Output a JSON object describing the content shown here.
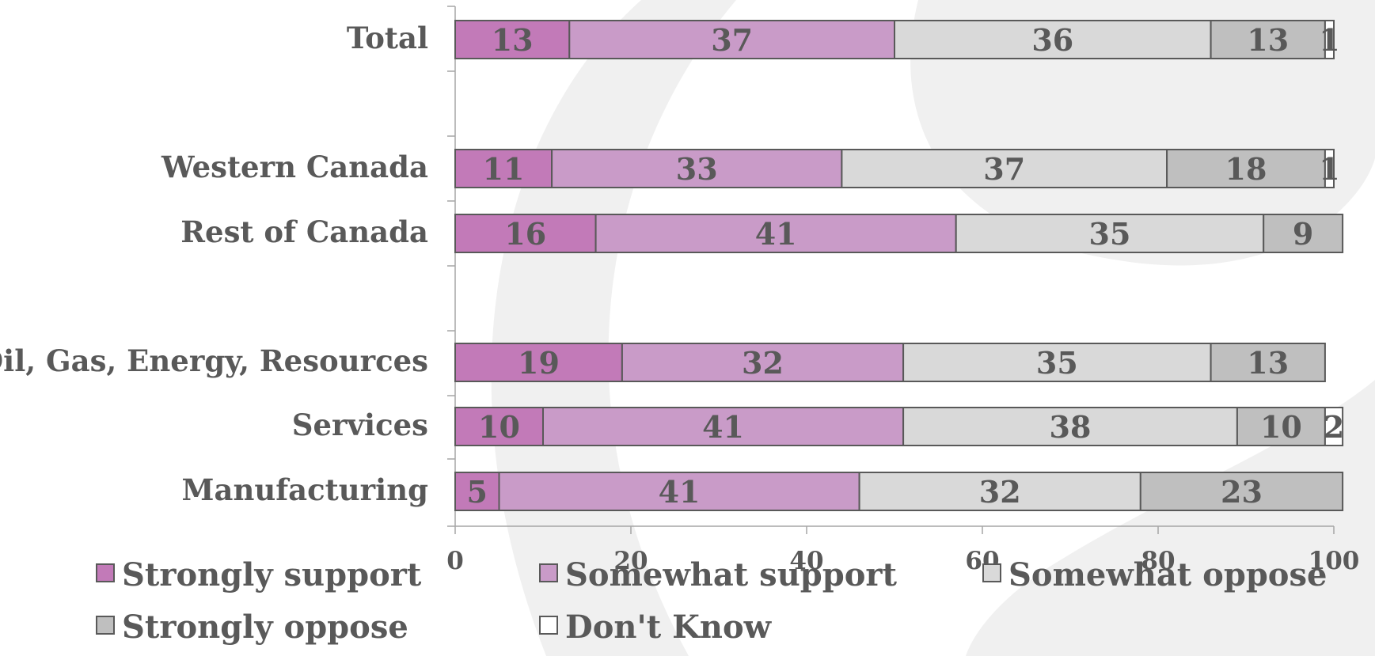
{
  "chart_data": {
    "type": "bar",
    "orientation": "horizontal",
    "stacked": true,
    "title": "",
    "xlabel": "",
    "ylabel": "",
    "xlim": [
      0,
      100
    ],
    "xticks": [
      0,
      20,
      40,
      60,
      80,
      100
    ],
    "grid": false,
    "legend_position": "bottom",
    "categories": [
      "Total",
      "Western Canada",
      "Rest of Canada",
      "Oil, Gas, Energy, Resources",
      "Services",
      "Manufacturing"
    ],
    "category_groups": [
      [
        0
      ],
      [
        1,
        2
      ],
      [
        3,
        4,
        5
      ]
    ],
    "series": [
      {
        "name": "Strongly support",
        "color": "#c27ab8",
        "values": [
          13,
          11,
          16,
          19,
          10,
          5
        ]
      },
      {
        "name": "Somewhat support",
        "color": "#c99bc8",
        "values": [
          37,
          33,
          41,
          32,
          41,
          41
        ]
      },
      {
        "name": "Somewhat oppose",
        "color": "#d9d9d9",
        "values": [
          36,
          37,
          35,
          35,
          38,
          32
        ]
      },
      {
        "name": "Strongly oppose",
        "color": "#bfbfbf",
        "values": [
          13,
          18,
          9,
          13,
          10,
          23
        ]
      },
      {
        "name": "Don't Know",
        "color": "#ffffff",
        "values": [
          1,
          1,
          null,
          null,
          2,
          null
        ]
      }
    ],
    "background_color": "#f0f0f0",
    "bar_edge_color": "#595959",
    "text_color": "#595959"
  }
}
